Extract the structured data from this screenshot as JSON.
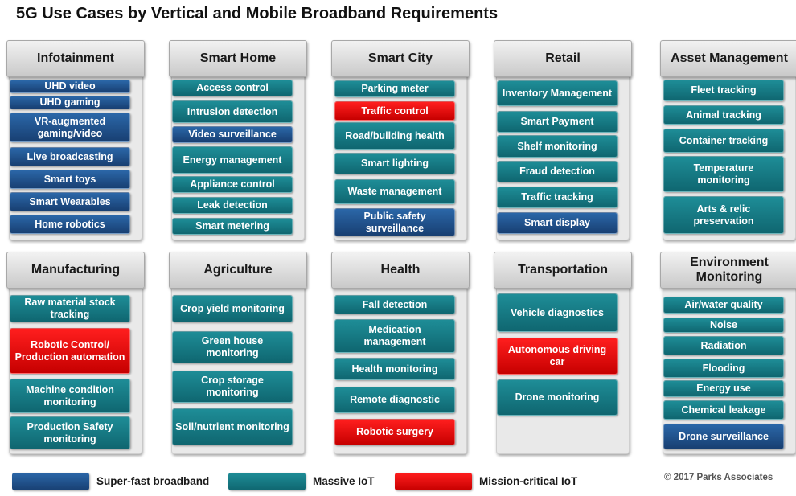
{
  "title": "5G Use Cases by Vertical and Mobile Broadband Requirements",
  "colors": {
    "super_fast_broadband": "#1f5796",
    "massive_iot": "#167880",
    "mission_critical_iot": "#ee0000"
  },
  "verticals": [
    {
      "name": "Infotainment",
      "items": [
        {
          "label": "UHD video",
          "type": "blue"
        },
        {
          "label": "UHD gaming",
          "type": "blue"
        },
        {
          "label": "VR-augmented gaming/video",
          "type": "blue"
        },
        {
          "label": "Live broadcasting",
          "type": "blue"
        },
        {
          "label": "Smart toys",
          "type": "blue"
        },
        {
          "label": "Smart Wearables",
          "type": "blue"
        },
        {
          "label": "Home robotics",
          "type": "blue"
        }
      ]
    },
    {
      "name": "Smart Home",
      "items": [
        {
          "label": "Access control",
          "type": "teal"
        },
        {
          "label": "Intrusion detection",
          "type": "teal"
        },
        {
          "label": "Video surveillance",
          "type": "blue"
        },
        {
          "label": "Energy management",
          "type": "teal"
        },
        {
          "label": "Appliance control",
          "type": "teal"
        },
        {
          "label": "Leak detection",
          "type": "teal"
        },
        {
          "label": "Smart metering",
          "type": "teal"
        }
      ]
    },
    {
      "name": "Smart City",
      "items": [
        {
          "label": "Parking meter",
          "type": "teal"
        },
        {
          "label": "Traffic control",
          "type": "red"
        },
        {
          "label": "Road/building health",
          "type": "teal"
        },
        {
          "label": "Smart lighting",
          "type": "teal"
        },
        {
          "label": "Waste management",
          "type": "teal"
        },
        {
          "label": "Public safety surveillance",
          "type": "blue"
        }
      ]
    },
    {
      "name": "Retail",
      "items": [
        {
          "label": "Inventory Management",
          "type": "teal"
        },
        {
          "label": "Smart Payment",
          "type": "teal"
        },
        {
          "label": "Shelf monitoring",
          "type": "teal"
        },
        {
          "label": "Fraud detection",
          "type": "teal"
        },
        {
          "label": "Traffic tracking",
          "type": "teal"
        },
        {
          "label": "Smart display",
          "type": "blue"
        }
      ]
    },
    {
      "name": "Asset Management",
      "items": [
        {
          "label": "Fleet tracking",
          "type": "teal"
        },
        {
          "label": "Animal tracking",
          "type": "teal"
        },
        {
          "label": "Container tracking",
          "type": "teal"
        },
        {
          "label": "Temperature monitoring",
          "type": "teal"
        },
        {
          "label": "Arts & relic preservation",
          "type": "teal"
        }
      ]
    },
    {
      "name": "Manufacturing",
      "items": [
        {
          "label": "Raw material stock tracking",
          "type": "teal"
        },
        {
          "label": "Robotic Control/ Production automation",
          "type": "red"
        },
        {
          "label": "Machine condition monitoring",
          "type": "teal"
        },
        {
          "label": "Production Safety monitoring",
          "type": "teal"
        }
      ]
    },
    {
      "name": "Agriculture",
      "items": [
        {
          "label": "Crop yield monitoring",
          "type": "teal"
        },
        {
          "label": "Green house monitoring",
          "type": "teal"
        },
        {
          "label": "Crop storage monitoring",
          "type": "teal"
        },
        {
          "label": "Soil/nutrient monitoring",
          "type": "teal"
        }
      ]
    },
    {
      "name": "Health",
      "items": [
        {
          "label": "Fall detection",
          "type": "teal"
        },
        {
          "label": "Medication management",
          "type": "teal"
        },
        {
          "label": "Health monitoring",
          "type": "teal"
        },
        {
          "label": "Remote diagnostic",
          "type": "teal"
        },
        {
          "label": "Robotic surgery",
          "type": "red"
        }
      ]
    },
    {
      "name": "Transportation",
      "items": [
        {
          "label": "Vehicle diagnostics",
          "type": "teal"
        },
        {
          "label": "Autonomous driving car",
          "type": "red"
        },
        {
          "label": "Drone monitoring",
          "type": "teal"
        }
      ]
    },
    {
      "name": "Environment Monitoring",
      "items": [
        {
          "label": "Air/water quality",
          "type": "teal"
        },
        {
          "label": "Noise",
          "type": "teal"
        },
        {
          "label": "Radiation",
          "type": "teal"
        },
        {
          "label": "Flooding",
          "type": "teal"
        },
        {
          "label": "Energy use",
          "type": "teal"
        },
        {
          "label": "Chemical leakage",
          "type": "teal"
        },
        {
          "label": "Drone surveillance",
          "type": "blue"
        }
      ]
    }
  ],
  "legend": [
    {
      "label": "Super-fast broadband",
      "type": "blue"
    },
    {
      "label": "Massive IoT",
      "type": "teal"
    },
    {
      "label": "Mission-critical IoT",
      "type": "red"
    }
  ],
  "copyright": "© 2017 Parks Associates"
}
